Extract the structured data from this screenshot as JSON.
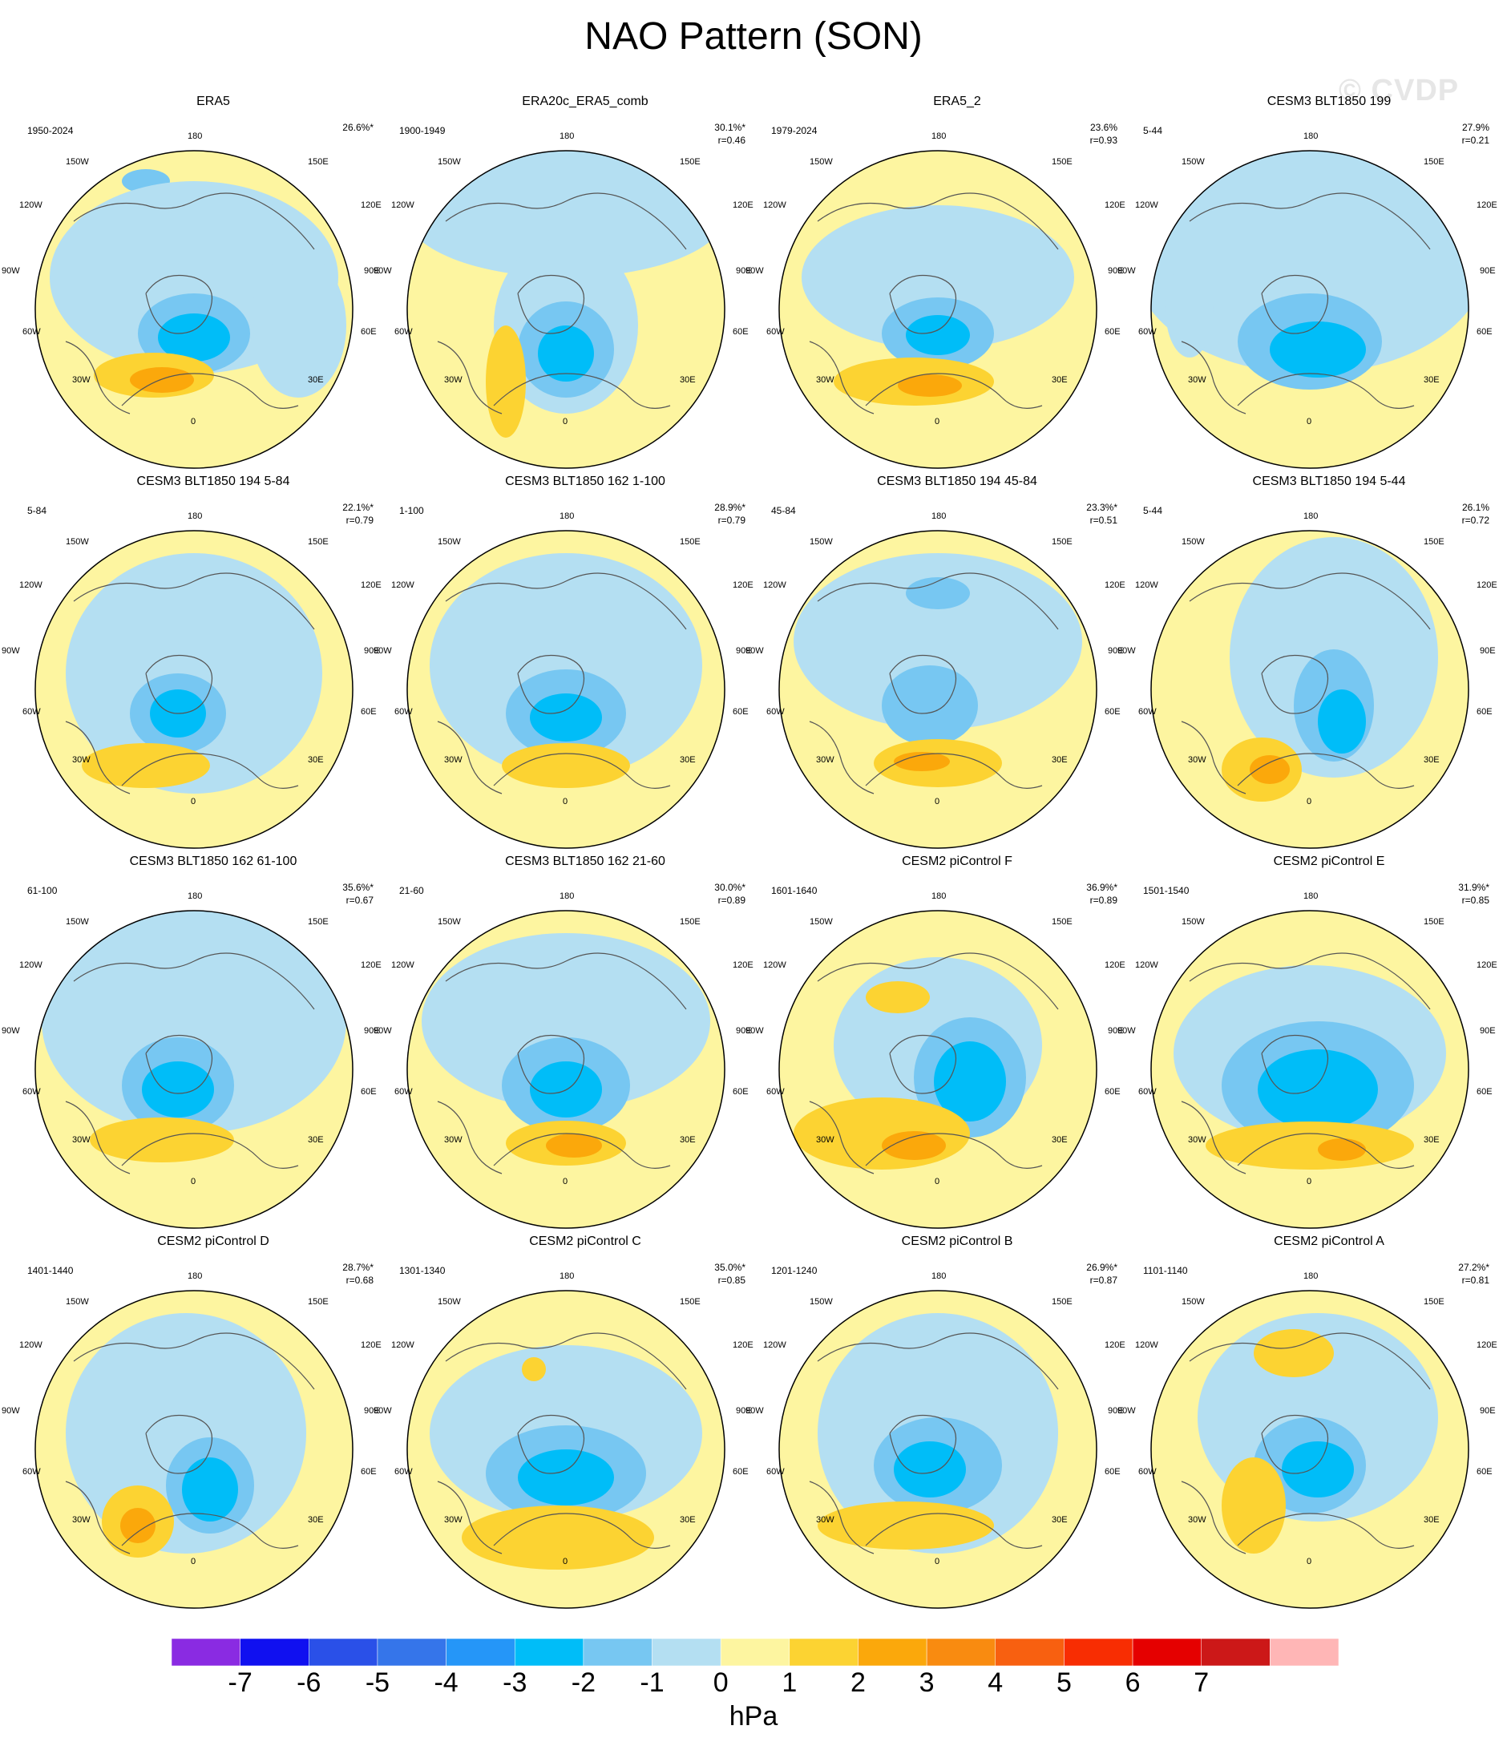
{
  "title": "NAO Pattern (SON)",
  "watermark": "© CVDP",
  "colors": {
    "neg7": "#8a2be2",
    "neg6": "#1010f0",
    "neg5": "#2a50e8",
    "neg4": "#3575ea",
    "neg3": "#2596f8",
    "neg2": "#00bdf8",
    "neg1": "#77c7f2",
    "zero_neg": "#b4dff2",
    "zero_pos": "#fdf5a0",
    "pos1": "#fcd332",
    "pos2": "#fba80b",
    "pos3": "#f98b10",
    "pos4": "#f86010",
    "pos5": "#f82d02",
    "pos6": "#e50000",
    "pos7": "#cc1818",
    "pos_max": "#ffb6b6"
  },
  "lon_labels": [
    "180",
    "150E",
    "120E",
    "90E",
    "60E",
    "30E",
    "0",
    "30W",
    "60W",
    "90W",
    "120W",
    "150W"
  ],
  "panels": [
    {
      "title": "ERA5",
      "period": "1950-2024",
      "pct": "26.6%*",
      "r": ""
    },
    {
      "title": "ERA20c_ERA5_comb",
      "period": "1900-1949",
      "pct": "30.1%*",
      "r": "r=0.46"
    },
    {
      "title": "ERA5_2",
      "period": "1979-2024",
      "pct": "23.6%",
      "r": "r=0.93"
    },
    {
      "title": "CESM3 BLT1850 199",
      "period": "5-44",
      "pct": "27.9%",
      "r": "r=0.21"
    },
    {
      "title": "CESM3 BLT1850 194 5-84",
      "period": "5-84",
      "pct": "22.1%*",
      "r": "r=0.79"
    },
    {
      "title": "CESM3 BLT1850 162 1-100",
      "period": "1-100",
      "pct": "28.9%*",
      "r": "r=0.79"
    },
    {
      "title": "CESM3 BLT1850 194 45-84",
      "period": "45-84",
      "pct": "23.3%*",
      "r": "r=0.51"
    },
    {
      "title": "CESM3 BLT1850 194 5-44",
      "period": "5-44",
      "pct": "26.1%",
      "r": "r=0.72"
    },
    {
      "title": "CESM3 BLT1850 162 61-100",
      "period": "61-100",
      "pct": "35.6%*",
      "r": "r=0.67"
    },
    {
      "title": "CESM3 BLT1850 162 21-60",
      "period": "21-60",
      "pct": "30.0%*",
      "r": "r=0.89"
    },
    {
      "title": "CESM2 piControl F",
      "period": "1601-1640",
      "pct": "36.9%*",
      "r": "r=0.89"
    },
    {
      "title": "CESM2 piControl E",
      "period": "1501-1540",
      "pct": "31.9%*",
      "r": "r=0.85"
    },
    {
      "title": "CESM2 piControl D",
      "period": "1401-1440",
      "pct": "28.7%*",
      "r": "r=0.68"
    },
    {
      "title": "CESM2 piControl C",
      "period": "1301-1340",
      "pct": "35.0%*",
      "r": "r=0.85"
    },
    {
      "title": "CESM2 piControl B",
      "period": "1201-1240",
      "pct": "26.9%*",
      "r": "r=0.87"
    },
    {
      "title": "CESM2 piControl A",
      "period": "1101-1140",
      "pct": "27.2%*",
      "r": "r=0.81"
    }
  ],
  "colorbar": {
    "labels": [
      "-7",
      "-6",
      "-5",
      "-4",
      "-3",
      "-2",
      "-1",
      "0",
      "1",
      "2",
      "3",
      "4",
      "5",
      "6",
      "7"
    ],
    "units": "hPa",
    "swatches": [
      "#8a2be2",
      "#1010f0",
      "#2a50e8",
      "#3575ea",
      "#2596f8",
      "#00bdf8",
      "#77c7f2",
      "#b4dff2",
      "#fdf5a0",
      "#fcd332",
      "#fba80b",
      "#f98b10",
      "#f86010",
      "#f82d02",
      "#e50000",
      "#cc1818",
      "#ffb6b6"
    ]
  }
}
